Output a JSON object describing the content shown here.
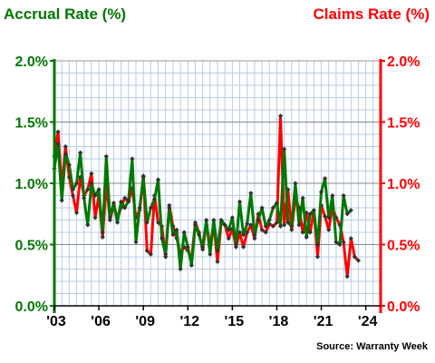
{
  "chart_data": {
    "type": "line",
    "title": "",
    "ylabel_left": "Accrual Rate (%)",
    "ylabel_right": "Claims Rate (%)",
    "source": "Source: Warranty Week",
    "x_range": [
      2003.0,
      2025.0
    ],
    "ylim": [
      0.0,
      2.0
    ],
    "y_ticks": [
      "0.0%",
      "0.5%",
      "1.0%",
      "1.5%",
      "2.0%"
    ],
    "x_ticks": [
      {
        "year": 2003,
        "label": "'03"
      },
      {
        "year": 2006,
        "label": "'06"
      },
      {
        "year": 2009,
        "label": "'09"
      },
      {
        "year": 2012,
        "label": "'12"
      },
      {
        "year": 2015,
        "label": "'15"
      },
      {
        "year": 2018,
        "label": "'18"
      },
      {
        "year": 2021,
        "label": "'21"
      },
      {
        "year": 2024,
        "label": "'24"
      }
    ],
    "grid": true,
    "colors": {
      "accrual": "#007700",
      "claims": "#ff0000",
      "grid": "#b8cce4",
      "minor_grid": "#888888",
      "marker": "#333333"
    },
    "series": [
      {
        "key": "accrual",
        "x_start": 2003.0,
        "step": 0.25,
        "values": [
          1.12,
          1.32,
          0.86,
          1.24,
          1.15,
          0.95,
          1.0,
          1.25,
          0.88,
          0.66,
          1.0,
          0.9,
          0.95,
          0.6,
          1.22,
          0.72,
          0.84,
          0.68,
          0.85,
          0.8,
          0.86,
          1.2,
          0.52,
          0.8,
          1.05,
          0.68,
          0.8,
          0.87,
          1.03,
          0.55,
          0.42,
          0.8,
          0.58,
          0.62,
          0.3,
          0.6,
          0.48,
          0.33,
          0.66,
          0.58,
          0.48,
          0.7,
          0.42,
          0.7,
          0.45,
          0.7,
          0.66,
          0.62,
          0.72,
          0.5,
          0.85,
          0.58,
          0.67,
          0.92,
          0.58,
          0.7,
          0.8,
          0.65,
          0.7,
          0.8,
          0.84,
          0.65,
          1.28,
          0.68,
          0.65,
          1.0,
          0.66,
          0.88,
          0.56,
          0.75,
          0.78,
          0.5,
          0.93,
          1.04,
          0.72,
          0.9,
          0.52,
          0.5,
          0.9,
          0.75,
          0.78
        ]
      },
      {
        "key": "claims",
        "x_start": 2003.0,
        "step": 0.25,
        "values": [
          1.22,
          1.42,
          0.96,
          1.3,
          1.05,
          0.9,
          0.76,
          1.05,
          0.9,
          0.95,
          1.08,
          0.72,
          0.9,
          0.56,
          1.0,
          0.7,
          0.82,
          0.72,
          0.8,
          0.88,
          0.85,
          0.96,
          0.72,
          0.78,
          1.06,
          0.45,
          0.42,
          0.9,
          0.68,
          0.65,
          0.4,
          0.82,
          0.65,
          0.55,
          0.43,
          0.48,
          0.45,
          0.38,
          0.68,
          0.6,
          0.46,
          0.66,
          0.5,
          0.66,
          0.36,
          0.68,
          0.66,
          0.55,
          0.63,
          0.48,
          0.6,
          0.48,
          0.6,
          0.66,
          0.55,
          0.75,
          0.62,
          0.6,
          0.67,
          0.65,
          0.68,
          1.55,
          0.66,
          0.95,
          0.62,
          0.88,
          0.8,
          0.6,
          0.76,
          0.6,
          0.78,
          0.4,
          0.82,
          0.73,
          0.62,
          0.8,
          0.72,
          0.66,
          0.52,
          0.24,
          0.55,
          0.4,
          0.37
        ]
      }
    ]
  }
}
